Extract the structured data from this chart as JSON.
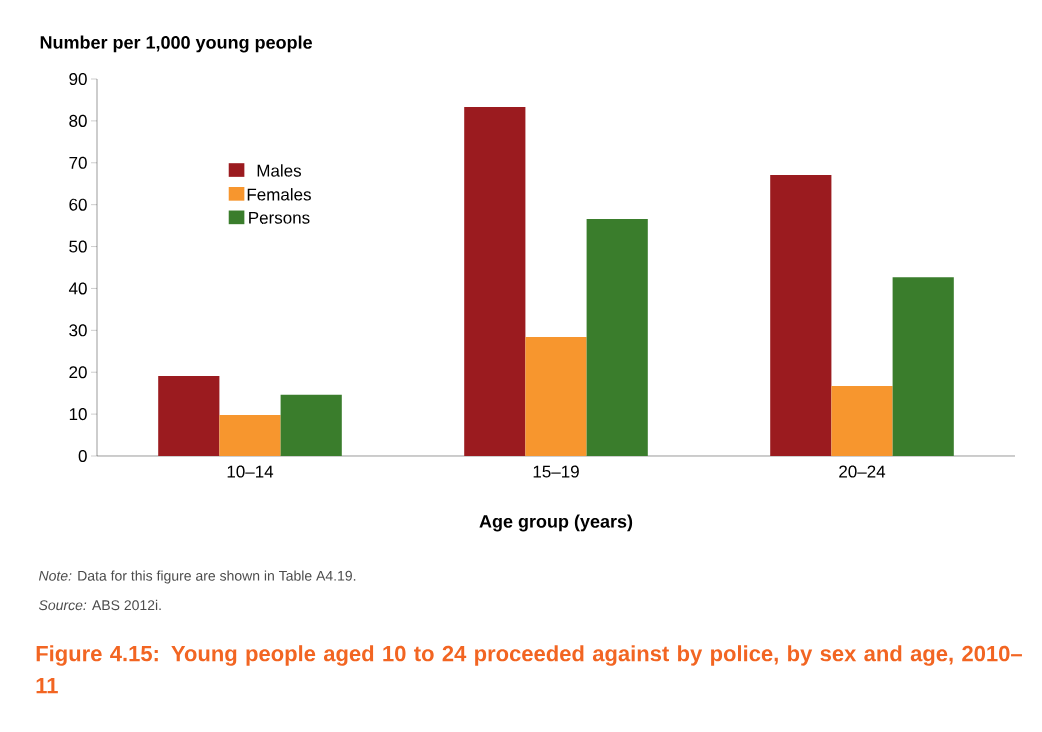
{
  "chart_data": {
    "type": "bar",
    "title": "Figure 4.15: Young people aged 10 to 24 proceeded against by police, by sex and age, 2010–11",
    "ylabel": "Number per 1,000 young people",
    "xlabel": "Age group (years)",
    "categories": [
      "10–14",
      "15–19",
      "20–24"
    ],
    "series": [
      {
        "name": "Males",
        "color": "#9b1b1f",
        "values": [
          19.1,
          83.3,
          67.1
        ]
      },
      {
        "name": "Females",
        "color": "#f7962e",
        "values": [
          9.8,
          28.4,
          16.7
        ]
      },
      {
        "name": "Persons",
        "color": "#3a7d2c",
        "values": [
          14.6,
          56.6,
          42.7
        ]
      }
    ],
    "ylim": [
      0,
      90
    ],
    "yticks": [
      0,
      10,
      20,
      30,
      40,
      50,
      60,
      70,
      80,
      90
    ],
    "legend": "top left",
    "annotations": [
      "*Note:* Data for this figure are shown in Table A4.19.",
      "*Source:* ABS 2012i."
    ]
  }
}
